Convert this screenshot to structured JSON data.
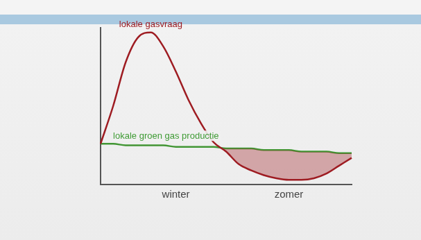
{
  "chart_data": {
    "type": "line",
    "categories": [
      null,
      null,
      null,
      null,
      null,
      null,
      "winter",
      null,
      null,
      null,
      null,
      null,
      null,
      null,
      null,
      "zomer",
      null,
      null,
      null,
      null,
      null
    ],
    "ylim": [
      0,
      100
    ],
    "grid": false,
    "tick_labels": "x",
    "series": [
      {
        "name": "lokale gasvraag",
        "color": "#9e1c22",
        "values": [
          26,
          50,
          78,
          94,
          97,
          88,
          72,
          54,
          39,
          27,
          21,
          13,
          9,
          6,
          4,
          3,
          3,
          4,
          7,
          12,
          17
        ]
      },
      {
        "name": "lokale groen gas productie",
        "color": "#3f9b35",
        "values": [
          26,
          26,
          25,
          25,
          25,
          25,
          24,
          24,
          24,
          24,
          23,
          23,
          23,
          22,
          22,
          22,
          21,
          21,
          21,
          20,
          20
        ]
      }
    ]
  }
}
